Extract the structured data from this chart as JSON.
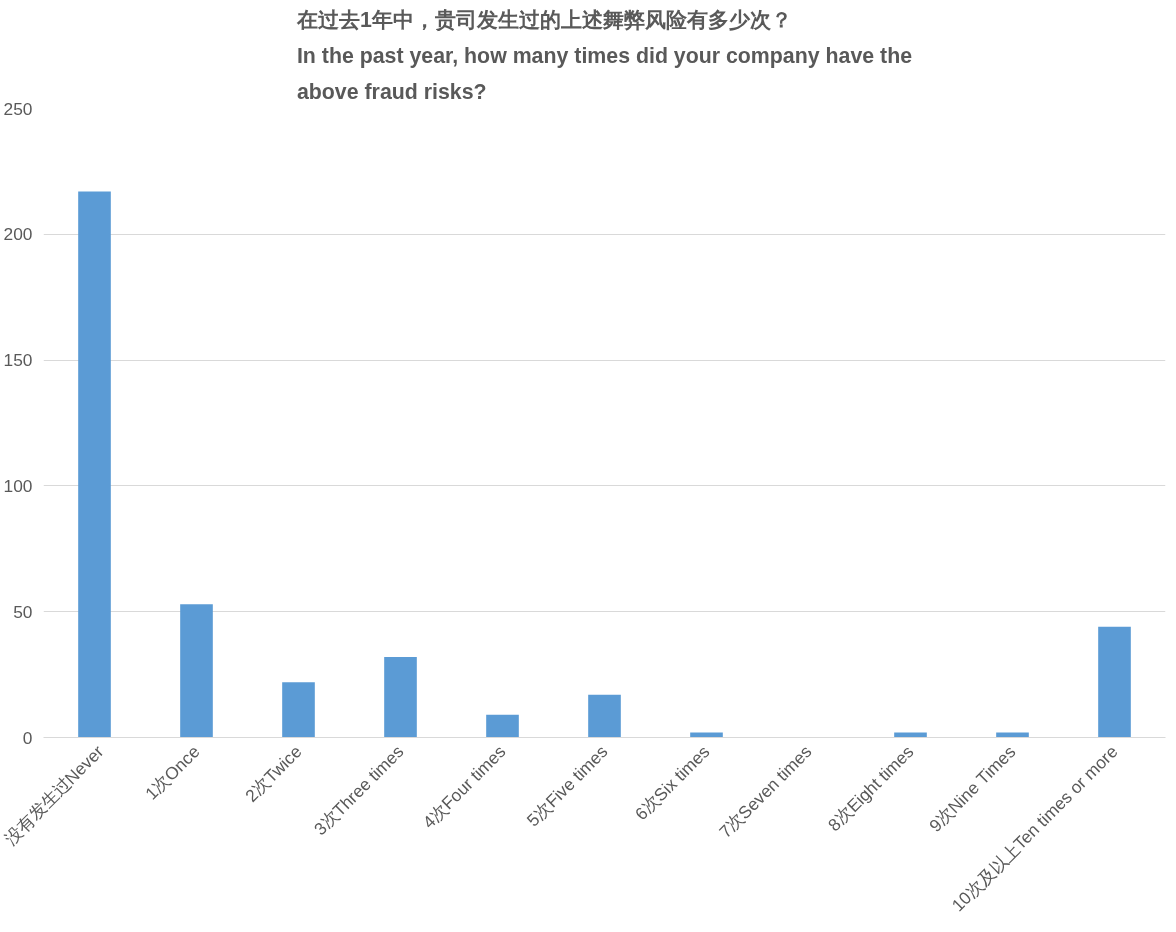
{
  "chart_data": {
    "type": "bar",
    "title": "在过去1年中，贵司发生过的上述舞弊风险有多少次？\nIn the past year, how many times did your company have the\nabove fraud risks?",
    "categories": [
      "没有发生过Never",
      "1次Once",
      "2次Twice",
      "3次Three times",
      "4次Four times",
      "5次Five times",
      "6次Six times",
      "7次Seven times",
      "8次Eight times",
      "9次Nine Times",
      "10次及以上Ten times or more"
    ],
    "values": [
      217,
      53,
      22,
      32,
      9,
      17,
      2,
      0,
      2,
      2,
      44
    ],
    "color": "#5b9bd5",
    "ylim": [
      0,
      250
    ],
    "yticks": [
      0,
      50,
      100,
      150,
      200,
      250
    ],
    "grid": "y"
  }
}
